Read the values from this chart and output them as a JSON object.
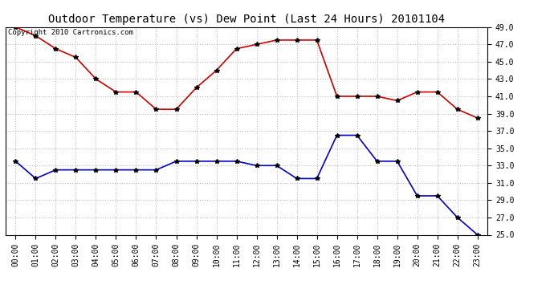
{
  "title": "Outdoor Temperature (vs) Dew Point (Last 24 Hours) 20101104",
  "copyright_text": "Copyright 2010 Cartronics.com",
  "hours": [
    "00:00",
    "01:00",
    "02:00",
    "03:00",
    "04:00",
    "05:00",
    "06:00",
    "07:00",
    "08:00",
    "09:00",
    "10:00",
    "11:00",
    "12:00",
    "13:00",
    "14:00",
    "15:00",
    "16:00",
    "17:00",
    "18:00",
    "19:00",
    "20:00",
    "21:00",
    "22:00",
    "23:00"
  ],
  "temp": [
    49.0,
    48.0,
    46.5,
    45.5,
    43.0,
    41.5,
    41.5,
    39.5,
    39.5,
    42.0,
    44.0,
    46.5,
    47.0,
    47.5,
    47.5,
    47.5,
    41.0,
    41.0,
    41.0,
    40.5,
    41.5,
    41.5,
    39.5,
    38.5
  ],
  "dew": [
    33.5,
    31.5,
    32.5,
    32.5,
    32.5,
    32.5,
    32.5,
    32.5,
    33.5,
    33.5,
    33.5,
    33.5,
    33.0,
    33.0,
    31.5,
    31.5,
    36.5,
    36.5,
    33.5,
    33.5,
    29.5,
    29.5,
    27.0,
    25.0
  ],
  "temp_color": "#cc0000",
  "dew_color": "#0000cc",
  "bg_color": "#ffffff",
  "grid_color": "#bbbbbb",
  "ylim_min": 25.0,
  "ylim_max": 49.0,
  "ytick_step": 2.0,
  "title_fontsize": 10,
  "axis_fontsize": 7,
  "copyright_fontsize": 6.5,
  "marker": "*",
  "marker_color": "#000000",
  "marker_size": 4,
  "line_width": 1.2
}
